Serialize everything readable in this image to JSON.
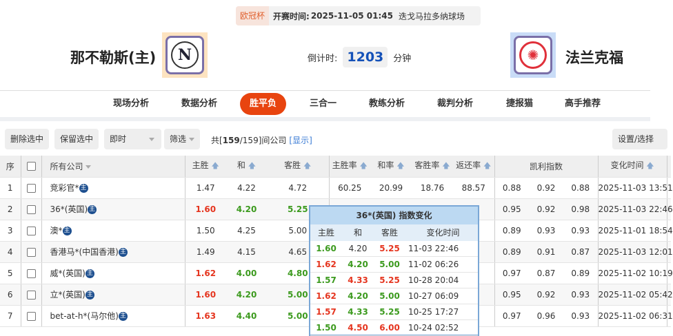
{
  "match": {
    "cup": "欧冠杯",
    "start_label": "开赛时间:",
    "start_time": "2025-11-05 01:45",
    "venue": "迭戈马拉多纳球场",
    "home": "那不勒斯(主)",
    "away": "法兰克福",
    "countdown_label": "倒计时:",
    "countdown": "1203",
    "countdown_unit": "分钟",
    "home_logo_letter": "N"
  },
  "nav": {
    "tabs": [
      "现场分析",
      "数据分析",
      "胜平负",
      "三合一",
      "教练分析",
      "裁判分析",
      "捷报猫",
      "高手推荐"
    ],
    "active": "胜平负"
  },
  "toolbar": {
    "delete": "删除选中",
    "keep": "保留选中",
    "mode": "即时",
    "filter": "筛选",
    "count_prefix": "共[",
    "count_bold": "159",
    "count_rest": "/159]间公司",
    "show": "[显示]",
    "settings": "设置/选择"
  },
  "table": {
    "headers": [
      "序",
      "",
      "所有公司",
      "主胜",
      "和",
      "客胜",
      "主胜率",
      "和率",
      "客胜率",
      "返还率",
      "凯利指数",
      "变化时间"
    ],
    "rows": [
      {
        "no": "1",
        "name": "竞彩官*",
        "odds": [
          "1.47",
          "4.22",
          "4.72"
        ],
        "colors": [
          "",
          "",
          ""
        ],
        "rates": [
          "60.25",
          "20.99",
          "18.76",
          "88.57"
        ],
        "kelly": [
          "0.88",
          "0.92",
          "0.88"
        ],
        "time": "2025-11-03 13:51"
      },
      {
        "no": "2",
        "name": "36*(英国)",
        "odds": [
          "1.60",
          "4.20",
          "5.25"
        ],
        "colors": [
          "r",
          "g",
          "g"
        ],
        "rates": [
          "",
          "",
          "",
          ""
        ],
        "kelly": [
          "0.95",
          "0.92",
          "0.98"
        ],
        "time": "2025-11-03 22:46"
      },
      {
        "no": "3",
        "name": "澳*",
        "odds": [
          "1.50",
          "4.25",
          "5.00"
        ],
        "colors": [
          "",
          "",
          ""
        ],
        "rates": [
          "",
          "",
          "",
          ""
        ],
        "kelly": [
          "0.89",
          "0.93",
          "0.93"
        ],
        "time": "2025-11-01 18:54"
      },
      {
        "no": "4",
        "name": "香港马*(中国香港)",
        "odds": [
          "1.49",
          "4.15",
          "4.65"
        ],
        "colors": [
          "",
          "",
          ""
        ],
        "rates": [
          "",
          "",
          "",
          ""
        ],
        "kelly": [
          "0.89",
          "0.91",
          "0.87"
        ],
        "time": "2025-11-03 12:01"
      },
      {
        "no": "5",
        "name": "威*(英国)",
        "odds": [
          "1.62",
          "4.00",
          "4.80"
        ],
        "colors": [
          "r",
          "g",
          "g"
        ],
        "rates": [
          "",
          "",
          "",
          ""
        ],
        "kelly": [
          "0.97",
          "0.87",
          "0.89"
        ],
        "time": "2025-11-02 10:19"
      },
      {
        "no": "6",
        "name": "立*(英国)",
        "odds": [
          "1.60",
          "4.20",
          "5.00"
        ],
        "colors": [
          "r",
          "g",
          "g"
        ],
        "rates": [
          "",
          "",
          "",
          ""
        ],
        "kelly": [
          "0.95",
          "0.92",
          "0.93"
        ],
        "time": "2025-11-02 05:42"
      },
      {
        "no": "7",
        "name": "bet-at-h*(马尔他)",
        "odds": [
          "1.63",
          "4.40",
          "5.00"
        ],
        "colors": [
          "r",
          "g",
          "g"
        ],
        "rates": [
          "",
          "",
          "",
          ""
        ],
        "kelly": [
          "0.97",
          "0.96",
          "0.93"
        ],
        "time": "2025-11-02 06:31"
      }
    ],
    "badge": "主"
  },
  "popup": {
    "title": "36*(英国) 指数变化",
    "headers": [
      "主胜",
      "和",
      "客胜",
      "变化时间"
    ],
    "rows": [
      {
        "v": [
          "1.60",
          "4.20",
          "5.25"
        ],
        "c": [
          "g",
          "",
          "r"
        ],
        "time": "11-03 22:46"
      },
      {
        "v": [
          "1.62",
          "4.20",
          "5.00"
        ],
        "c": [
          "r",
          "g",
          "g"
        ],
        "time": "11-02 06:26"
      },
      {
        "v": [
          "1.57",
          "4.33",
          "5.25"
        ],
        "c": [
          "g",
          "r",
          "r"
        ],
        "time": "10-28 20:04"
      },
      {
        "v": [
          "1.62",
          "4.20",
          "5.00"
        ],
        "c": [
          "r",
          "g",
          "g"
        ],
        "time": "10-27 06:09"
      },
      {
        "v": [
          "1.57",
          "4.33",
          "5.25"
        ],
        "c": [
          "r",
          "g",
          "g"
        ],
        "time": "10-25 17:27"
      },
      {
        "v": [
          "1.50",
          "4.50",
          "6.00"
        ],
        "c": [
          "g",
          "r",
          "r"
        ],
        "time": "10-24 02:52"
      }
    ]
  }
}
